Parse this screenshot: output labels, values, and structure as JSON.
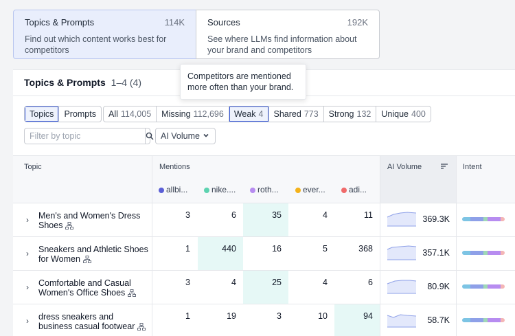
{
  "cards": [
    {
      "title": "Topics & Prompts",
      "count": "114K",
      "description": "Find out which content works best for competitors",
      "active": true
    },
    {
      "title": "Sources",
      "count": "192K",
      "description": "See where LLMs find information about your brand and competitors",
      "active": false
    }
  ],
  "panel": {
    "title": "Topics & Prompts",
    "range": "1–4 (4)"
  },
  "tooltip": "Competitors are mentioned more often than your brand.",
  "view_tabs": [
    {
      "label": "Topics",
      "selected": true
    },
    {
      "label": "Prompts",
      "selected": false
    }
  ],
  "filters": [
    {
      "label": "All",
      "count": "114,005"
    },
    {
      "label": "Missing",
      "count": "112,696"
    },
    {
      "label": "Weak",
      "count": "4",
      "selected": true
    },
    {
      "label": "Shared",
      "count": "773"
    },
    {
      "label": "Strong",
      "count": "132"
    },
    {
      "label": "Unique",
      "count": "400"
    }
  ],
  "search": {
    "placeholder": "Filter by topic",
    "value": ""
  },
  "volume_dropdown": "AI Volume",
  "table": {
    "headers": {
      "topic": "Topic",
      "mentions": "Mentions",
      "ai_volume": "AI Volume",
      "intent": "Intent"
    },
    "brands": [
      {
        "name": "allbi...",
        "color": "#5b5fd6"
      },
      {
        "name": "nike....",
        "color": "#5dd3b0"
      },
      {
        "name": "roth...",
        "color": "#b78cf0"
      },
      {
        "name": "ever...",
        "color": "#f4b21a"
      },
      {
        "name": "adi...",
        "color": "#f06a6a"
      }
    ],
    "rows": [
      {
        "topic": "Men's and Women's Dress Shoes",
        "mentions": [
          "3",
          "6",
          "35",
          "4",
          "11"
        ],
        "highlight": 2,
        "volume": "369.3K"
      },
      {
        "topic": "Sneakers and Athletic Shoes for Women",
        "mentions": [
          "1",
          "440",
          "16",
          "5",
          "368"
        ],
        "highlight": 1,
        "volume": "357.1K"
      },
      {
        "topic": "Comfortable and Casual Women's Office Shoes",
        "mentions": [
          "3",
          "4",
          "25",
          "4",
          "6"
        ],
        "highlight": 2,
        "volume": "80.9K"
      },
      {
        "topic": "dress sneakers and business casual footwear",
        "mentions": [
          "1",
          "19",
          "3",
          "10",
          "94"
        ],
        "highlight": 4,
        "volume": "58.7K"
      }
    ]
  },
  "colors": {
    "accent": "#3b5bdb",
    "highlight": "#e6f8f6",
    "card_active": "#e9eefc"
  },
  "icons": {
    "search": "magnifier-icon",
    "dropdown": "chevron-down-icon",
    "sort": "sort-icon",
    "expand": "chevron-right-icon",
    "tree": "hierarchy-icon"
  }
}
